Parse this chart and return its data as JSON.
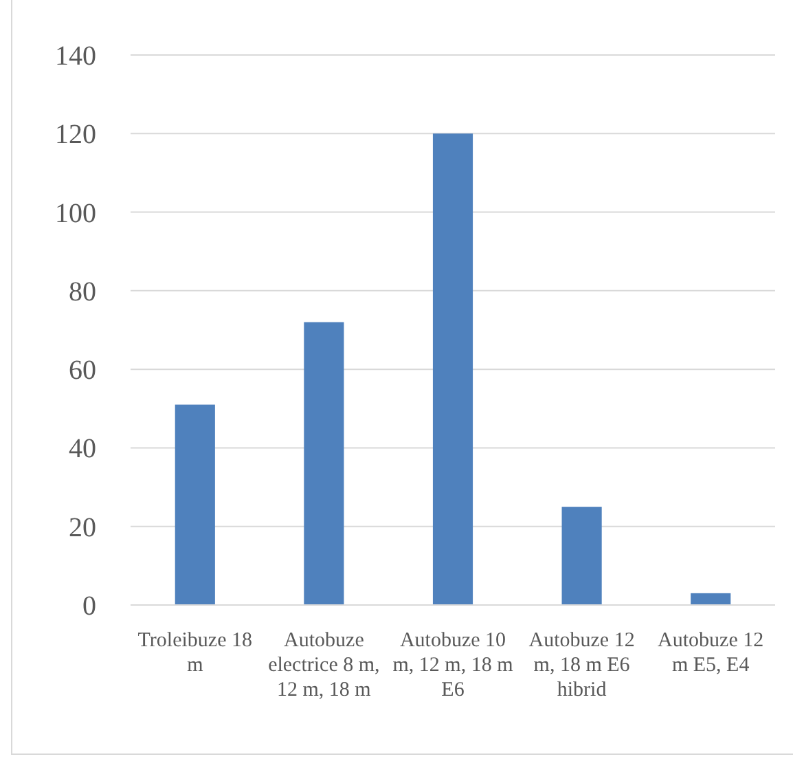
{
  "chart_data": {
    "type": "bar",
    "categories": [
      "Troleibuze 18 m",
      "Autobuze electrice 8 m, 12 m, 18 m",
      "Autobuze 10 m, 12 m, 18 m E6",
      "Autobuze 12 m, 18 m E6 hibrid",
      "Autobuze 12 m E5, E4"
    ],
    "values": [
      51,
      72,
      120,
      25,
      3
    ],
    "color": "#4f81bd",
    "ylim": [
      0,
      140
    ],
    "yticks": [
      0,
      20,
      40,
      60,
      80,
      100,
      120,
      140
    ],
    "grid": "y"
  }
}
